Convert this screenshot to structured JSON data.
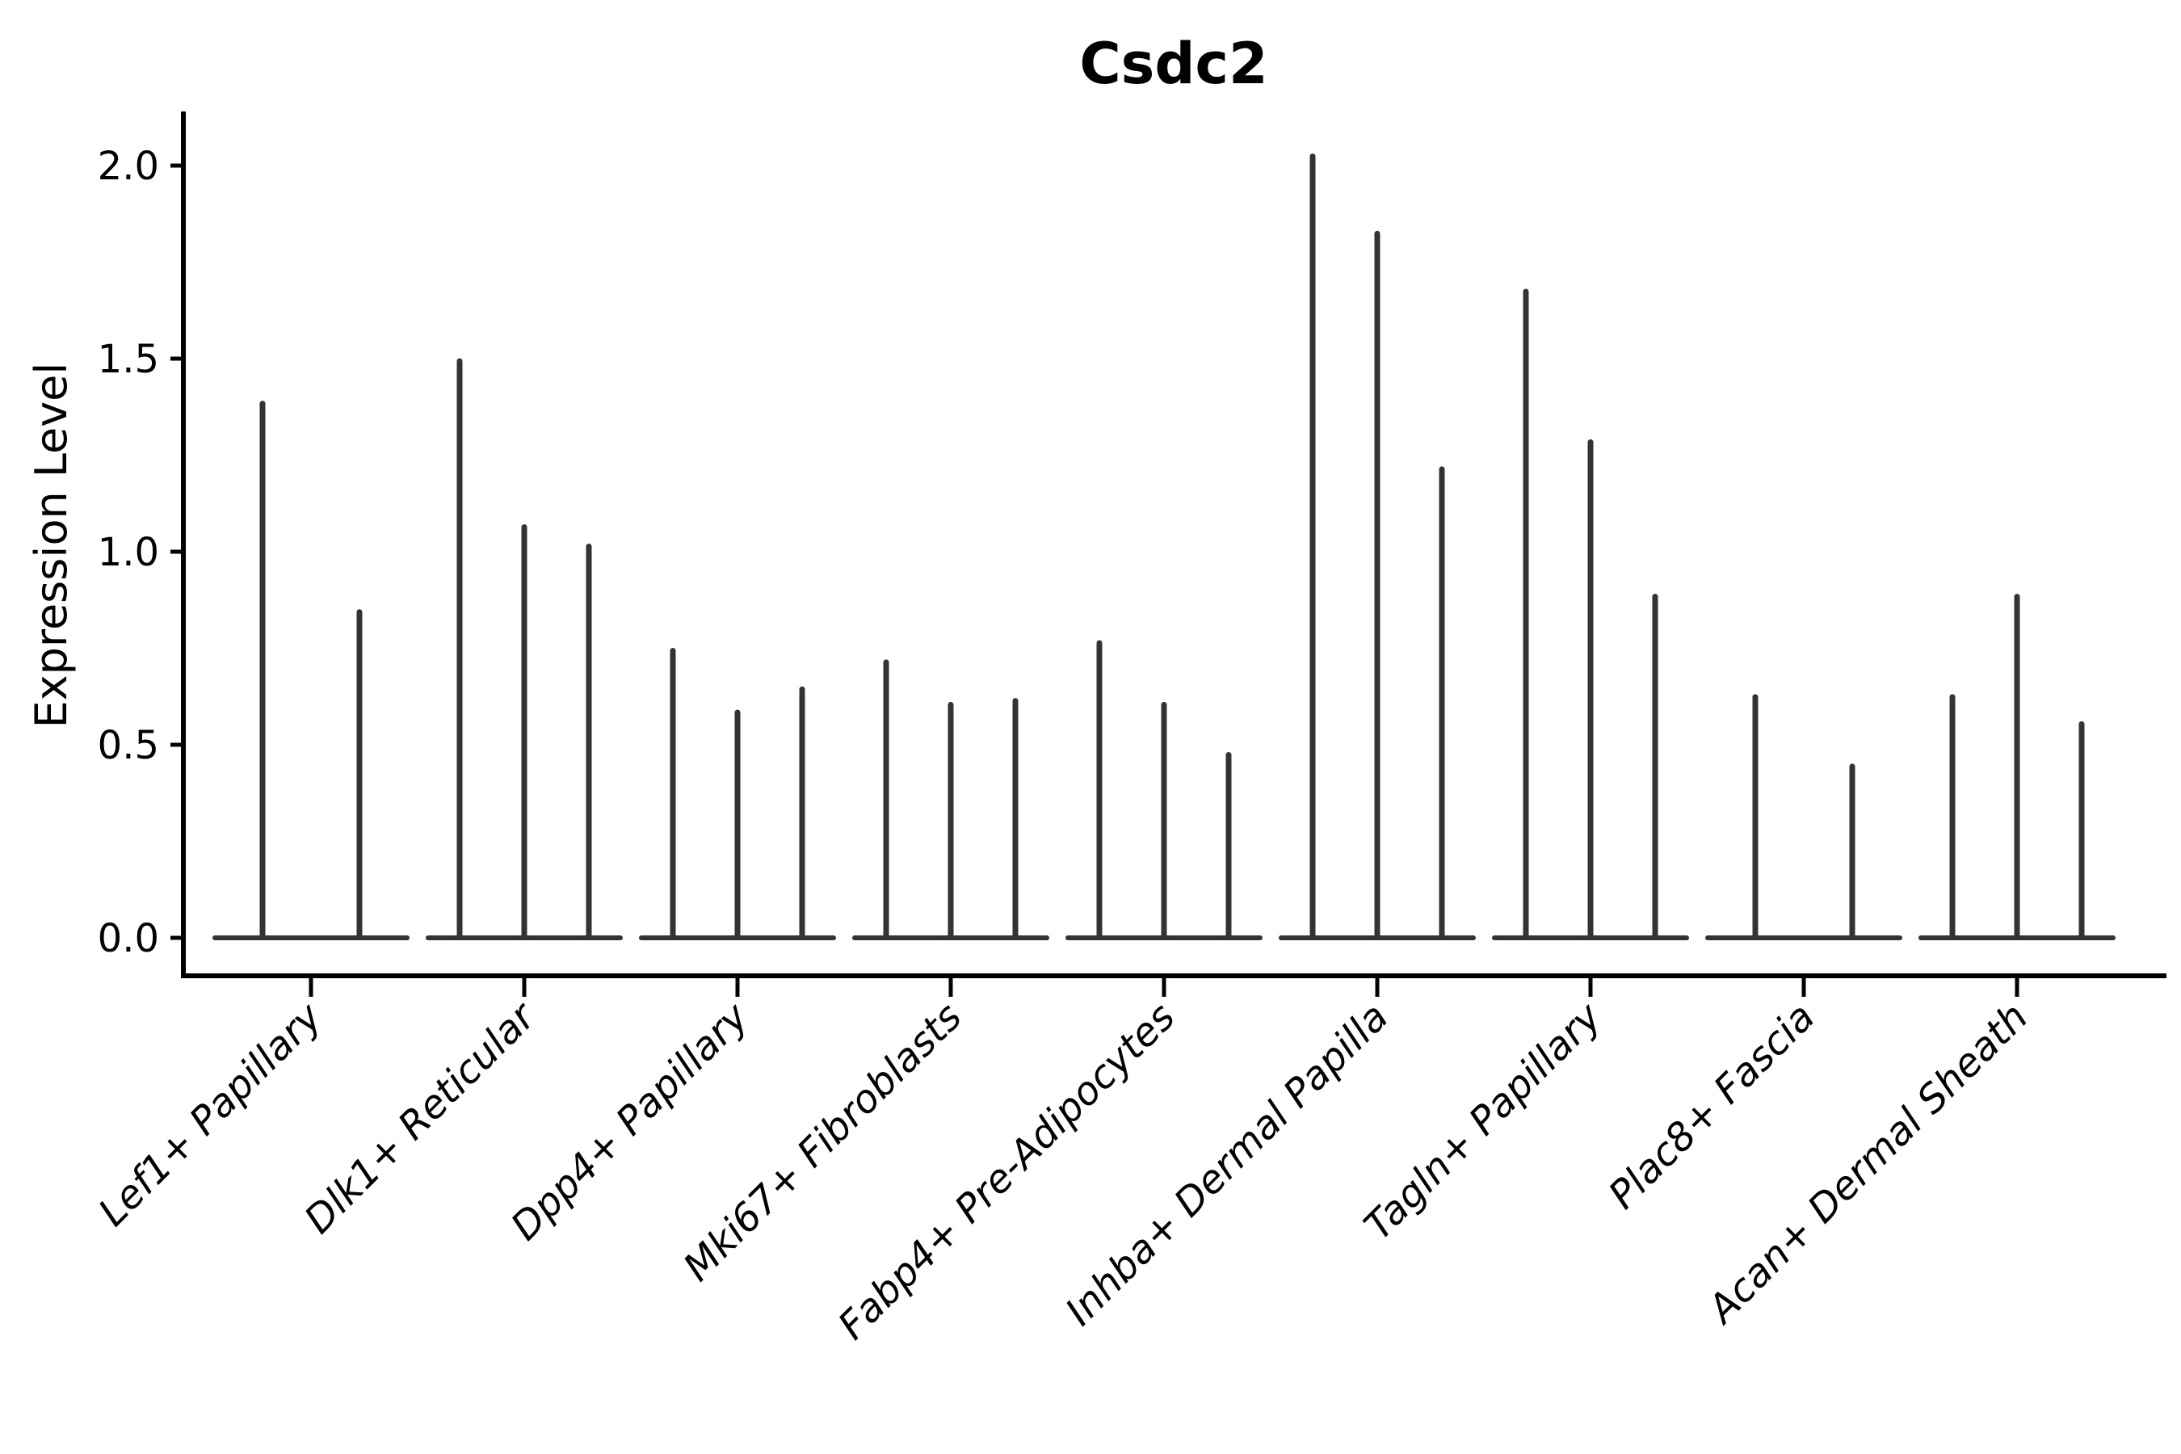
{
  "title": "Csdc2",
  "y_axis": {
    "label": "Expression Level",
    "tick_labels": [
      "0.0",
      "0.5",
      "1.0",
      "1.5",
      "2.0"
    ],
    "tick_values": [
      0.0,
      0.5,
      1.0,
      1.5,
      2.0
    ]
  },
  "x_axis": {
    "categories": [
      "Lef1+ Papillary",
      "Dlk1+ Reticular",
      "Dpp4+ Papillary",
      "Mki67+ Fibroblasts",
      "Fabp4+ Pre-Adipocytes",
      "Inhba+ Dermal Papilla",
      "Tagln+ Papillary",
      "Plac8+ Fascia",
      "Acan+ Dermal Sheath"
    ]
  },
  "colors": {
    "violin": "#333333",
    "axis": "#000000",
    "text": "#000000",
    "background": "#ffffff"
  },
  "chart_data": {
    "type": "violin",
    "title": "Csdc2",
    "xlabel": "",
    "ylabel": "Expression Level",
    "ylim": [
      0,
      2.14
    ],
    "y_ticks": [
      0.0,
      0.5,
      1.0,
      1.5,
      2.0
    ],
    "y_tick_labels": [
      "0.0",
      "0.5",
      "1.0",
      "1.5",
      "2.0"
    ],
    "grid": false,
    "legend_position": "none",
    "description": "Needle-shaped violins: wide flat base at expression 0 with a thin spike up to the max expression value per violin; 2 or 3 violins per cell-type group.",
    "categories": [
      "Lef1+ Papillary",
      "Dlk1+ Reticular",
      "Dpp4+ Papillary",
      "Mki67+ Fibroblasts",
      "Fabp4+ Pre-Adipocytes",
      "Inhba+ Dermal Papilla",
      "Tagln+ Papillary",
      "Plac8+ Fascia",
      "Acan+ Dermal Sheath"
    ],
    "groups": [
      {
        "category": "Lef1+ Papillary",
        "violin_max_values": [
          1.39,
          0.85
        ]
      },
      {
        "category": "Dlk1+ Reticular",
        "violin_max_values": [
          1.5,
          1.07,
          1.02
        ]
      },
      {
        "category": "Dpp4+ Papillary",
        "violin_max_values": [
          0.75,
          0.59,
          0.65
        ]
      },
      {
        "category": "Mki67+ Fibroblasts",
        "violin_max_values": [
          0.72,
          0.61,
          0.62
        ]
      },
      {
        "category": "Fabp4+ Pre-Adipocytes",
        "violin_max_values": [
          0.77,
          0.61,
          0.48
        ]
      },
      {
        "category": "Inhba+ Dermal Papilla",
        "violin_max_values": [
          2.03,
          1.83,
          1.22
        ]
      },
      {
        "category": "Tagln+ Papillary",
        "violin_max_values": [
          1.68,
          1.29,
          0.89
        ]
      },
      {
        "category": "Plac8+ Fascia",
        "violin_max_values": [
          0.63,
          0.45
        ]
      },
      {
        "category": "Acan+ Dermal Sheath",
        "violin_max_values": [
          0.63,
          0.89,
          0.56
        ]
      }
    ]
  }
}
